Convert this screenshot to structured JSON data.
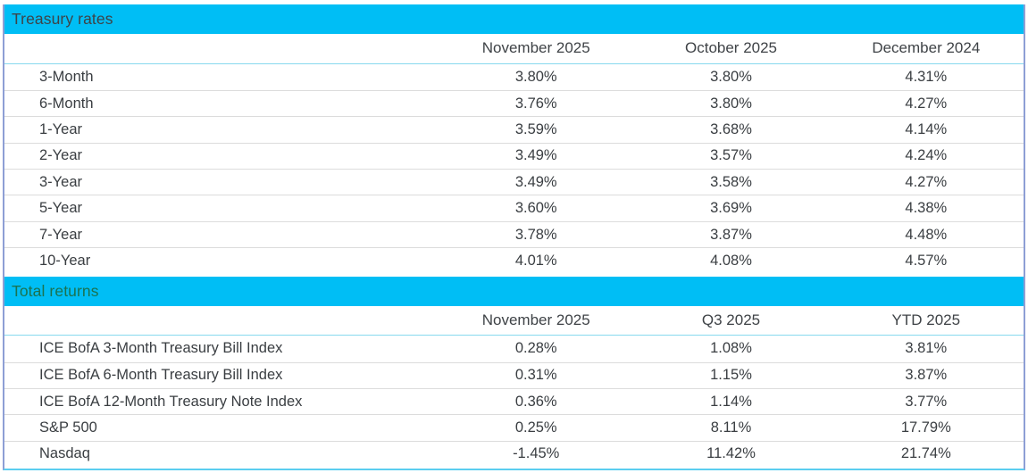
{
  "colors": {
    "band": "#00bef5",
    "treasury_title": "#3e4347",
    "returns_title": "#1b7350",
    "body_text": "#3a3e42",
    "row_divider": "#dcdcdc",
    "header_underline": "#87d9ee",
    "outer_border": "#8e9fd5",
    "bottom_border": "#5bcef0"
  },
  "treasury_rates": {
    "section_title": "Treasury rates",
    "columns": [
      "November 2025",
      "October 2025",
      "December 2024"
    ],
    "rows": [
      {
        "label": "3-Month",
        "values": [
          "3.80%",
          "3.80%",
          "4.31%"
        ]
      },
      {
        "label": "6-Month",
        "values": [
          "3.76%",
          "3.80%",
          "4.27%"
        ]
      },
      {
        "label": "1-Year",
        "values": [
          "3.59%",
          "3.68%",
          "4.14%"
        ]
      },
      {
        "label": "2-Year",
        "values": [
          "3.49%",
          "3.57%",
          "4.24%"
        ]
      },
      {
        "label": "3-Year",
        "values": [
          "3.49%",
          "3.58%",
          "4.27%"
        ]
      },
      {
        "label": "5-Year",
        "values": [
          "3.60%",
          "3.69%",
          "4.38%"
        ]
      },
      {
        "label": "7-Year",
        "values": [
          "3.78%",
          "3.87%",
          "4.48%"
        ]
      },
      {
        "label": "10-Year",
        "values": [
          "4.01%",
          "4.08%",
          "4.57%"
        ]
      }
    ]
  },
  "total_returns": {
    "section_title": "Total returns",
    "columns": [
      "November 2025",
      "Q3 2025",
      "YTD 2025"
    ],
    "rows": [
      {
        "label": "ICE BofA 3-Month Treasury Bill Index",
        "values": [
          "0.28%",
          "1.08%",
          "3.81%"
        ]
      },
      {
        "label": "ICE BofA 6-Month Treasury Bill Index",
        "values": [
          "0.31%",
          "1.15%",
          "3.87%"
        ]
      },
      {
        "label": "ICE BofA 12-Month Treasury Note Index",
        "values": [
          "0.36%",
          "1.14%",
          "3.77%"
        ]
      },
      {
        "label": "S&P 500",
        "values": [
          "0.25%",
          "8.11%",
          "17.79%"
        ]
      },
      {
        "label": "Nasdaq",
        "values": [
          "-1.45%",
          "11.42%",
          "21.74%"
        ]
      }
    ]
  }
}
